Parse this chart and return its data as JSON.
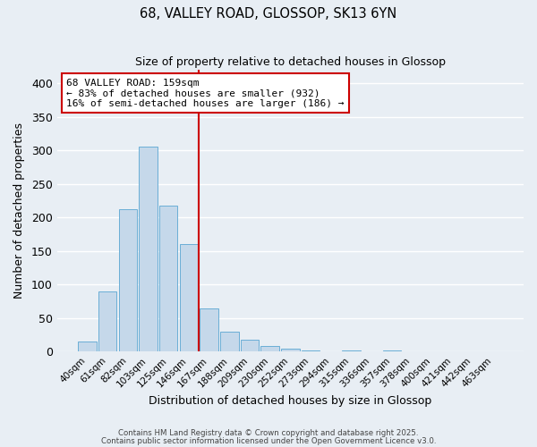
{
  "title": "68, VALLEY ROAD, GLOSSOP, SK13 6YN",
  "subtitle": "Size of property relative to detached houses in Glossop",
  "xlabel": "Distribution of detached houses by size in Glossop",
  "ylabel": "Number of detached properties",
  "bar_color": "#c5d8ea",
  "bar_edge_color": "#6aaed6",
  "background_color": "#e8eef4",
  "grid_color": "#ffffff",
  "bin_labels": [
    "40sqm",
    "61sqm",
    "82sqm",
    "103sqm",
    "125sqm",
    "146sqm",
    "167sqm",
    "188sqm",
    "209sqm",
    "230sqm",
    "252sqm",
    "273sqm",
    "294sqm",
    "315sqm",
    "336sqm",
    "357sqm",
    "378sqm",
    "400sqm",
    "421sqm",
    "442sqm",
    "463sqm"
  ],
  "bar_heights": [
    15,
    90,
    212,
    305,
    217,
    160,
    65,
    30,
    18,
    8,
    4,
    2,
    0,
    2,
    0,
    2,
    0,
    1,
    0,
    0,
    1
  ],
  "vline_x": 5.5,
  "vline_color": "#cc0000",
  "ylim": [
    0,
    420
  ],
  "yticks": [
    0,
    50,
    100,
    150,
    200,
    250,
    300,
    350,
    400
  ],
  "annotation_title": "68 VALLEY ROAD: 159sqm",
  "annotation_line1": "← 83% of detached houses are smaller (932)",
  "annotation_line2": "16% of semi-detached houses are larger (186) →",
  "annotation_box_color": "#ffffff",
  "annotation_box_edge": "#cc0000",
  "footer1": "Contains HM Land Registry data © Crown copyright and database right 2025.",
  "footer2": "Contains public sector information licensed under the Open Government Licence v3.0."
}
